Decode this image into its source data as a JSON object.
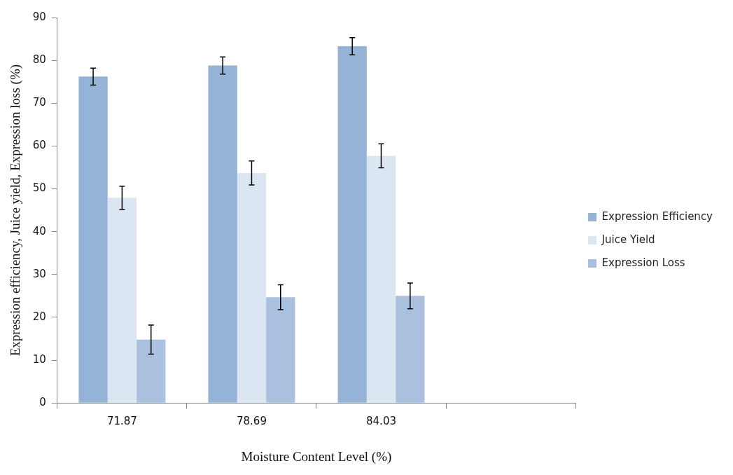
{
  "chart_data": {
    "type": "bar",
    "xlabel": "Moisture Content Level (%)",
    "ylabel": "Expression efficiency, Juice yield, Expression loss (%)",
    "categories": [
      "71.87",
      "78.69",
      "84.03",
      null
    ],
    "series": [
      {
        "name": "Expression Efficiency",
        "color": "#95b3d7",
        "values": [
          76.2,
          78.8,
          83.3,
          null
        ],
        "errors": [
          2,
          2,
          2,
          null
        ]
      },
      {
        "name": "Juice Yield",
        "color": "#dce6f2",
        "values": [
          47.9,
          53.7,
          57.7,
          null
        ],
        "errors": [
          2.7,
          2.8,
          2.8,
          null
        ]
      },
      {
        "name": "Expression Loss",
        "color": "#a9c0de",
        "values": [
          14.8,
          24.7,
          25,
          null
        ],
        "errors": [
          3.4,
          2.9,
          3,
          null
        ]
      }
    ],
    "ylim": [
      0,
      90
    ],
    "yticks": [
      0,
      10,
      20,
      30,
      40,
      50,
      60,
      70,
      80,
      90
    ],
    "grid": false,
    "legend": "right"
  }
}
